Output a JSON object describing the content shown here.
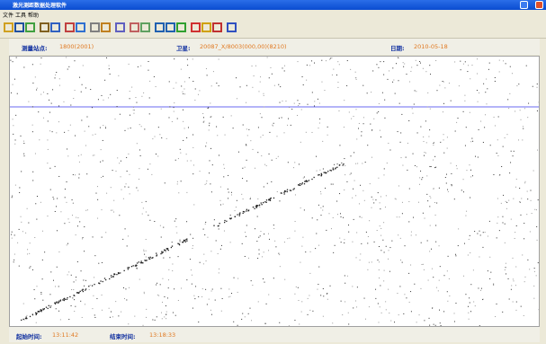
{
  "window": {
    "title": "激光测距数据处理软件"
  },
  "menu": [
    "文件",
    "工具",
    "帮助"
  ],
  "info": {
    "station_label": "测量站点:",
    "station": "1800(2001)",
    "satellite_label": "卫星:",
    "satellite": "20087_X/8003(000,00)(8210)",
    "date_label": "日期:",
    "date": "2010-05-18"
  },
  "status": {
    "start_label": "起始时间:",
    "start": "13:11:42",
    "end_label": "结束时间:",
    "end": "13:18:33"
  }
}
